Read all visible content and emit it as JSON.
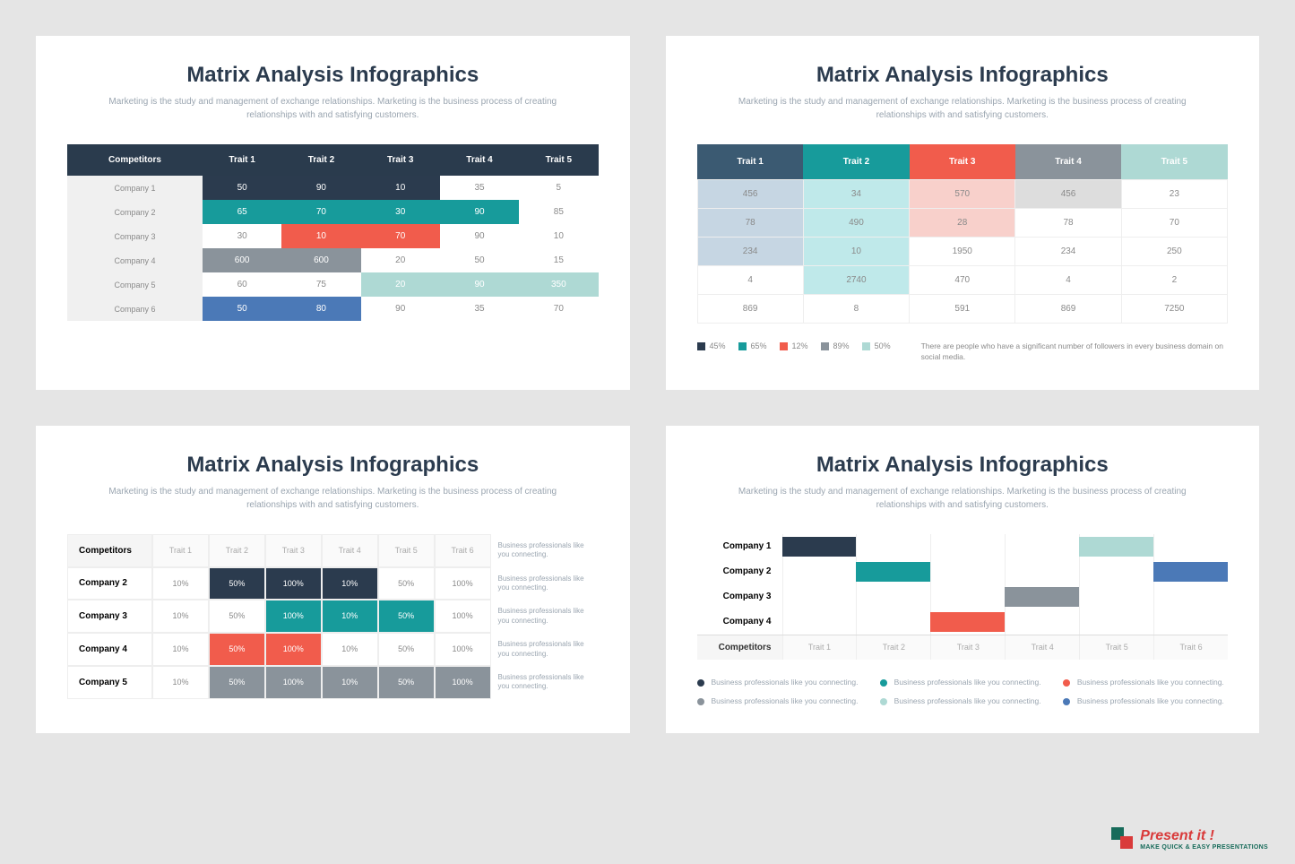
{
  "colors": {
    "navy": "#2b3b4e",
    "teal": "#179b9b",
    "teal_dark": "#0d8a8a",
    "coral": "#f15c4c",
    "gray": "#8a939b",
    "lightteal": "#aed9d4",
    "blue": "#4b79b7",
    "lightblue": "#c6d6e3",
    "lightteal2": "#bfe9ea",
    "lightcoral": "#f8d0cb",
    "lightgray2": "#dddddd",
    "navy_header": "#2a3b4d"
  },
  "shared": {
    "title": "Matrix Analysis Infographics",
    "subtitle": "Marketing is the study and management of exchange relationships. Marketing is the business process of creating relationships with and satisfying customers."
  },
  "slide1": {
    "header_bg": "#2a3b4d",
    "headers": [
      "Competitors",
      "Trait 1",
      "Trait 2",
      "Trait 3",
      "Trait 4",
      "Trait 5"
    ],
    "rows": [
      {
        "label": "Company 1",
        "cells": [
          {
            "v": "50",
            "bg": "#2b3b4e",
            "fg": "#fff"
          },
          {
            "v": "90",
            "bg": "#2b3b4e",
            "fg": "#fff"
          },
          {
            "v": "10",
            "bg": "#2b3b4e",
            "fg": "#fff"
          },
          {
            "v": "35",
            "bg": "",
            "fg": ""
          },
          {
            "v": "5",
            "bg": "",
            "fg": ""
          }
        ]
      },
      {
        "label": "Company 2",
        "cells": [
          {
            "v": "65",
            "bg": "#179b9b",
            "fg": "#fff"
          },
          {
            "v": "70",
            "bg": "#179b9b",
            "fg": "#fff"
          },
          {
            "v": "30",
            "bg": "#179b9b",
            "fg": "#fff"
          },
          {
            "v": "90",
            "bg": "#179b9b",
            "fg": "#fff"
          },
          {
            "v": "85",
            "bg": "",
            "fg": ""
          }
        ]
      },
      {
        "label": "Company 3",
        "cells": [
          {
            "v": "30",
            "bg": "",
            "fg": ""
          },
          {
            "v": "10",
            "bg": "#f15c4c",
            "fg": "#fff"
          },
          {
            "v": "70",
            "bg": "#f15c4c",
            "fg": "#fff"
          },
          {
            "v": "90",
            "bg": "",
            "fg": ""
          },
          {
            "v": "10",
            "bg": "",
            "fg": ""
          }
        ]
      },
      {
        "label": "Company 4",
        "cells": [
          {
            "v": "600",
            "bg": "#8a939b",
            "fg": "#fff"
          },
          {
            "v": "600",
            "bg": "#8a939b",
            "fg": "#fff"
          },
          {
            "v": "20",
            "bg": "",
            "fg": ""
          },
          {
            "v": "50",
            "bg": "",
            "fg": ""
          },
          {
            "v": "15",
            "bg": "",
            "fg": ""
          }
        ]
      },
      {
        "label": "Company 5",
        "cells": [
          {
            "v": "60",
            "bg": "",
            "fg": ""
          },
          {
            "v": "75",
            "bg": "",
            "fg": ""
          },
          {
            "v": "20",
            "bg": "#aed9d4",
            "fg": "#fff"
          },
          {
            "v": "90",
            "bg": "#aed9d4",
            "fg": "#fff"
          },
          {
            "v": "350",
            "bg": "#aed9d4",
            "fg": "#fff"
          }
        ]
      },
      {
        "label": "Company 6",
        "cells": [
          {
            "v": "50",
            "bg": "#4b79b7",
            "fg": "#fff"
          },
          {
            "v": "80",
            "bg": "#4b79b7",
            "fg": "#fff"
          },
          {
            "v": "90",
            "bg": "",
            "fg": ""
          },
          {
            "v": "35",
            "bg": "",
            "fg": ""
          },
          {
            "v": "70",
            "bg": "",
            "fg": ""
          }
        ]
      }
    ]
  },
  "slide2": {
    "headers": [
      {
        "label": "Trait 1",
        "bg": "#3b5a72"
      },
      {
        "label": "Trait 2",
        "bg": "#179b9b"
      },
      {
        "label": "Trait 3",
        "bg": "#f15c4c"
      },
      {
        "label": "Trait 4",
        "bg": "#8a939b"
      },
      {
        "label": "Trait 5",
        "bg": "#aed9d4"
      }
    ],
    "rows": [
      [
        {
          "v": "456",
          "bg": "#c6d6e3"
        },
        {
          "v": "34",
          "bg": "#bfe9ea"
        },
        {
          "v": "570",
          "bg": "#f8d0cb"
        },
        {
          "v": "456",
          "bg": "#dddddd"
        },
        {
          "v": "23",
          "bg": ""
        }
      ],
      [
        {
          "v": "78",
          "bg": "#c6d6e3"
        },
        {
          "v": "490",
          "bg": "#bfe9ea"
        },
        {
          "v": "28",
          "bg": "#f8d0cb"
        },
        {
          "v": "78",
          "bg": ""
        },
        {
          "v": "70",
          "bg": ""
        }
      ],
      [
        {
          "v": "234",
          "bg": "#c6d6e3"
        },
        {
          "v": "10",
          "bg": "#bfe9ea"
        },
        {
          "v": "1950",
          "bg": ""
        },
        {
          "v": "234",
          "bg": ""
        },
        {
          "v": "250",
          "bg": ""
        }
      ],
      [
        {
          "v": "4",
          "bg": ""
        },
        {
          "v": "2740",
          "bg": "#bfe9ea"
        },
        {
          "v": "470",
          "bg": ""
        },
        {
          "v": "4",
          "bg": ""
        },
        {
          "v": "2",
          "bg": ""
        }
      ],
      [
        {
          "v": "869",
          "bg": ""
        },
        {
          "v": "8",
          "bg": ""
        },
        {
          "v": "591",
          "bg": ""
        },
        {
          "v": "869",
          "bg": ""
        },
        {
          "v": "7250",
          "bg": ""
        }
      ]
    ],
    "legend": [
      {
        "c": "#2b3b4e",
        "t": "45%"
      },
      {
        "c": "#179b9b",
        "t": "65%"
      },
      {
        "c": "#f15c4c",
        "t": "12%"
      },
      {
        "c": "#8a939b",
        "t": "89%"
      },
      {
        "c": "#aed9d4",
        "t": "50%"
      }
    ],
    "legend_note": "There are people who have a significant number of followers in every business domain on social media."
  },
  "slide3": {
    "col_headers": [
      "Trait 1",
      "Trait 2",
      "Trait 3",
      "Trait 4",
      "Trait 5",
      "Trait 6"
    ],
    "row_header": "Competitors",
    "note": "Business professionals like you connecting.",
    "rows": [
      {
        "label": "Company 2",
        "cells": [
          {
            "v": "10%",
            "bg": "",
            "fg": ""
          },
          {
            "v": "50%",
            "bg": "#2b3b4e",
            "fg": "#fff"
          },
          {
            "v": "100%",
            "bg": "#2b3b4e",
            "fg": "#fff"
          },
          {
            "v": "10%",
            "bg": "#2b3b4e",
            "fg": "#fff"
          },
          {
            "v": "50%",
            "bg": "",
            "fg": ""
          },
          {
            "v": "100%",
            "bg": "",
            "fg": ""
          }
        ]
      },
      {
        "label": "Company 3",
        "cells": [
          {
            "v": "10%",
            "bg": "",
            "fg": ""
          },
          {
            "v": "50%",
            "bg": "",
            "fg": ""
          },
          {
            "v": "100%",
            "bg": "#179b9b",
            "fg": "#fff"
          },
          {
            "v": "10%",
            "bg": "#179b9b",
            "fg": "#fff"
          },
          {
            "v": "50%",
            "bg": "#179b9b",
            "fg": "#fff"
          },
          {
            "v": "100%",
            "bg": "",
            "fg": ""
          }
        ]
      },
      {
        "label": "Company 4",
        "cells": [
          {
            "v": "10%",
            "bg": "",
            "fg": ""
          },
          {
            "v": "50%",
            "bg": "#f15c4c",
            "fg": "#fff"
          },
          {
            "v": "100%",
            "bg": "#f15c4c",
            "fg": "#fff"
          },
          {
            "v": "10%",
            "bg": "",
            "fg": ""
          },
          {
            "v": "50%",
            "bg": "",
            "fg": ""
          },
          {
            "v": "100%",
            "bg": "",
            "fg": ""
          }
        ]
      },
      {
        "label": "Company 5",
        "cells": [
          {
            "v": "10%",
            "bg": "",
            "fg": ""
          },
          {
            "v": "50%",
            "bg": "#8a939b",
            "fg": "#fff"
          },
          {
            "v": "100%",
            "bg": "#8a939b",
            "fg": "#fff"
          },
          {
            "v": "10%",
            "bg": "#8a939b",
            "fg": "#fff"
          },
          {
            "v": "50%",
            "bg": "#8a939b",
            "fg": "#fff"
          },
          {
            "v": "100%",
            "bg": "#8a939b",
            "fg": "#fff"
          }
        ]
      }
    ]
  },
  "slide4": {
    "companies": [
      "Company 1",
      "Company 2",
      "Company 3",
      "Company 4"
    ],
    "traits": [
      "Trait 1",
      "Trait 2",
      "Trait 3",
      "Trait 4",
      "Trait 5",
      "Trait 6"
    ],
    "row_header": "Competitors",
    "bars": [
      {
        "row": 0,
        "start": 0,
        "span": 1,
        "color": "#2b3b4e"
      },
      {
        "row": 0,
        "start": 4,
        "span": 1,
        "color": "#aed9d4"
      },
      {
        "row": 1,
        "start": 1,
        "span": 1,
        "color": "#179b9b"
      },
      {
        "row": 1,
        "start": 5,
        "span": 1,
        "color": "#4b79b7"
      },
      {
        "row": 2,
        "start": 3,
        "span": 1,
        "color": "#8a939b"
      },
      {
        "row": 3,
        "start": 2,
        "span": 1,
        "color": "#f15c4c"
      }
    ],
    "legend": [
      {
        "c": "#2b3b4e",
        "t": "Business professionals like you connecting."
      },
      {
        "c": "#179b9b",
        "t": "Business professionals like you connecting."
      },
      {
        "c": "#f15c4c",
        "t": "Business professionals like you connecting."
      },
      {
        "c": "#8a939b",
        "t": "Business professionals like you connecting."
      },
      {
        "c": "#aed9d4",
        "t": "Business professionals like you connecting."
      },
      {
        "c": "#4b79b7",
        "t": "Business professionals like you connecting."
      }
    ]
  },
  "brand": {
    "name": "Present it !",
    "tagline": "MAKE QUICK & EASY PRESENTATIONS"
  }
}
